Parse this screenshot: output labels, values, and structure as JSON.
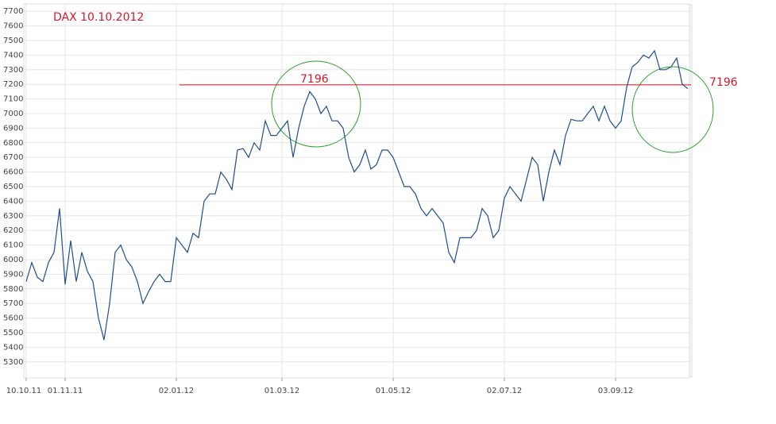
{
  "chart_data": {
    "type": "line",
    "title": "DAX 10.10.2012",
    "categories": [
      "10.10.11",
      null,
      null,
      null,
      null,
      null,
      null,
      "01.11.11",
      null,
      null,
      null,
      null,
      null,
      null,
      null,
      null,
      null,
      null,
      null,
      null,
      null,
      null,
      null,
      null,
      null,
      null,
      null,
      "02.01.12",
      null,
      null,
      null,
      null,
      null,
      null,
      null,
      null,
      null,
      null,
      null,
      null,
      null,
      null,
      null,
      null,
      null,
      null,
      "01.03.12",
      null,
      null,
      null,
      null,
      null,
      null,
      null,
      null,
      null,
      null,
      null,
      null,
      null,
      null,
      null,
      null,
      null,
      null,
      null,
      "01.05.12",
      null,
      null,
      null,
      null,
      null,
      null,
      null,
      null,
      null,
      null,
      null,
      null,
      null,
      null,
      null,
      null,
      null,
      null,
      null,
      "02.07.12",
      null,
      null,
      null,
      null,
      null,
      null,
      null,
      null,
      null,
      null,
      null,
      null,
      null,
      null,
      null,
      null,
      null,
      null,
      null,
      "03.09.12",
      null,
      null,
      null,
      null,
      null,
      null,
      null,
      null,
      null,
      null,
      null,
      null,
      null
    ],
    "series": [
      {
        "name": "DAX",
        "color": "#1f4e8c",
        "values": [
          5850,
          5980,
          5880,
          5850,
          5980,
          6050,
          6350,
          5830,
          6130,
          5850,
          6050,
          5920,
          5850,
          5600,
          5450,
          5700,
          6050,
          6100,
          6000,
          5950,
          5850,
          5700,
          5780,
          5850,
          5900,
          5850,
          5850,
          6150,
          6100,
          6050,
          6180,
          6150,
          6400,
          6450,
          6450,
          6600,
          6550,
          6480,
          6750,
          6760,
          6700,
          6800,
          6750,
          6950,
          6850,
          6850,
          6900,
          6950,
          6700,
          6900,
          7050,
          7150,
          7100,
          7000,
          7050,
          6950,
          6950,
          6900,
          6700,
          6600,
          6650,
          6750,
          6620,
          6650,
          6750,
          6750,
          6700,
          6600,
          6500,
          6500,
          6450,
          6350,
          6300,
          6350,
          6300,
          6250,
          6050,
          5980,
          6150,
          6150,
          6150,
          6200,
          6350,
          6300,
          6150,
          6200,
          6420,
          6500,
          6450,
          6400,
          6550,
          6700,
          6650,
          6400,
          6600,
          6750,
          6650,
          6850,
          6960,
          6950,
          6950,
          7000,
          7050,
          6950,
          7050,
          6950,
          6900,
          6950,
          7180,
          7320,
          7350,
          7400,
          7380,
          7430,
          7300,
          7300,
          7320,
          7380,
          7200,
          7170
        ]
      }
    ],
    "ylim": [
      5190,
      7750
    ],
    "yticks": [
      5300,
      5400,
      5500,
      5600,
      5700,
      5800,
      5900,
      6000,
      6100,
      6200,
      6300,
      6400,
      6500,
      6600,
      6700,
      6800,
      6900,
      7000,
      7100,
      7200,
      7300,
      7400,
      7500,
      7600,
      7700
    ],
    "grid": true,
    "hline": {
      "value": 7196,
      "color": "#d9182d"
    },
    "annotations": [
      {
        "text": "7196"
      },
      {
        "text": "7196"
      }
    ]
  }
}
